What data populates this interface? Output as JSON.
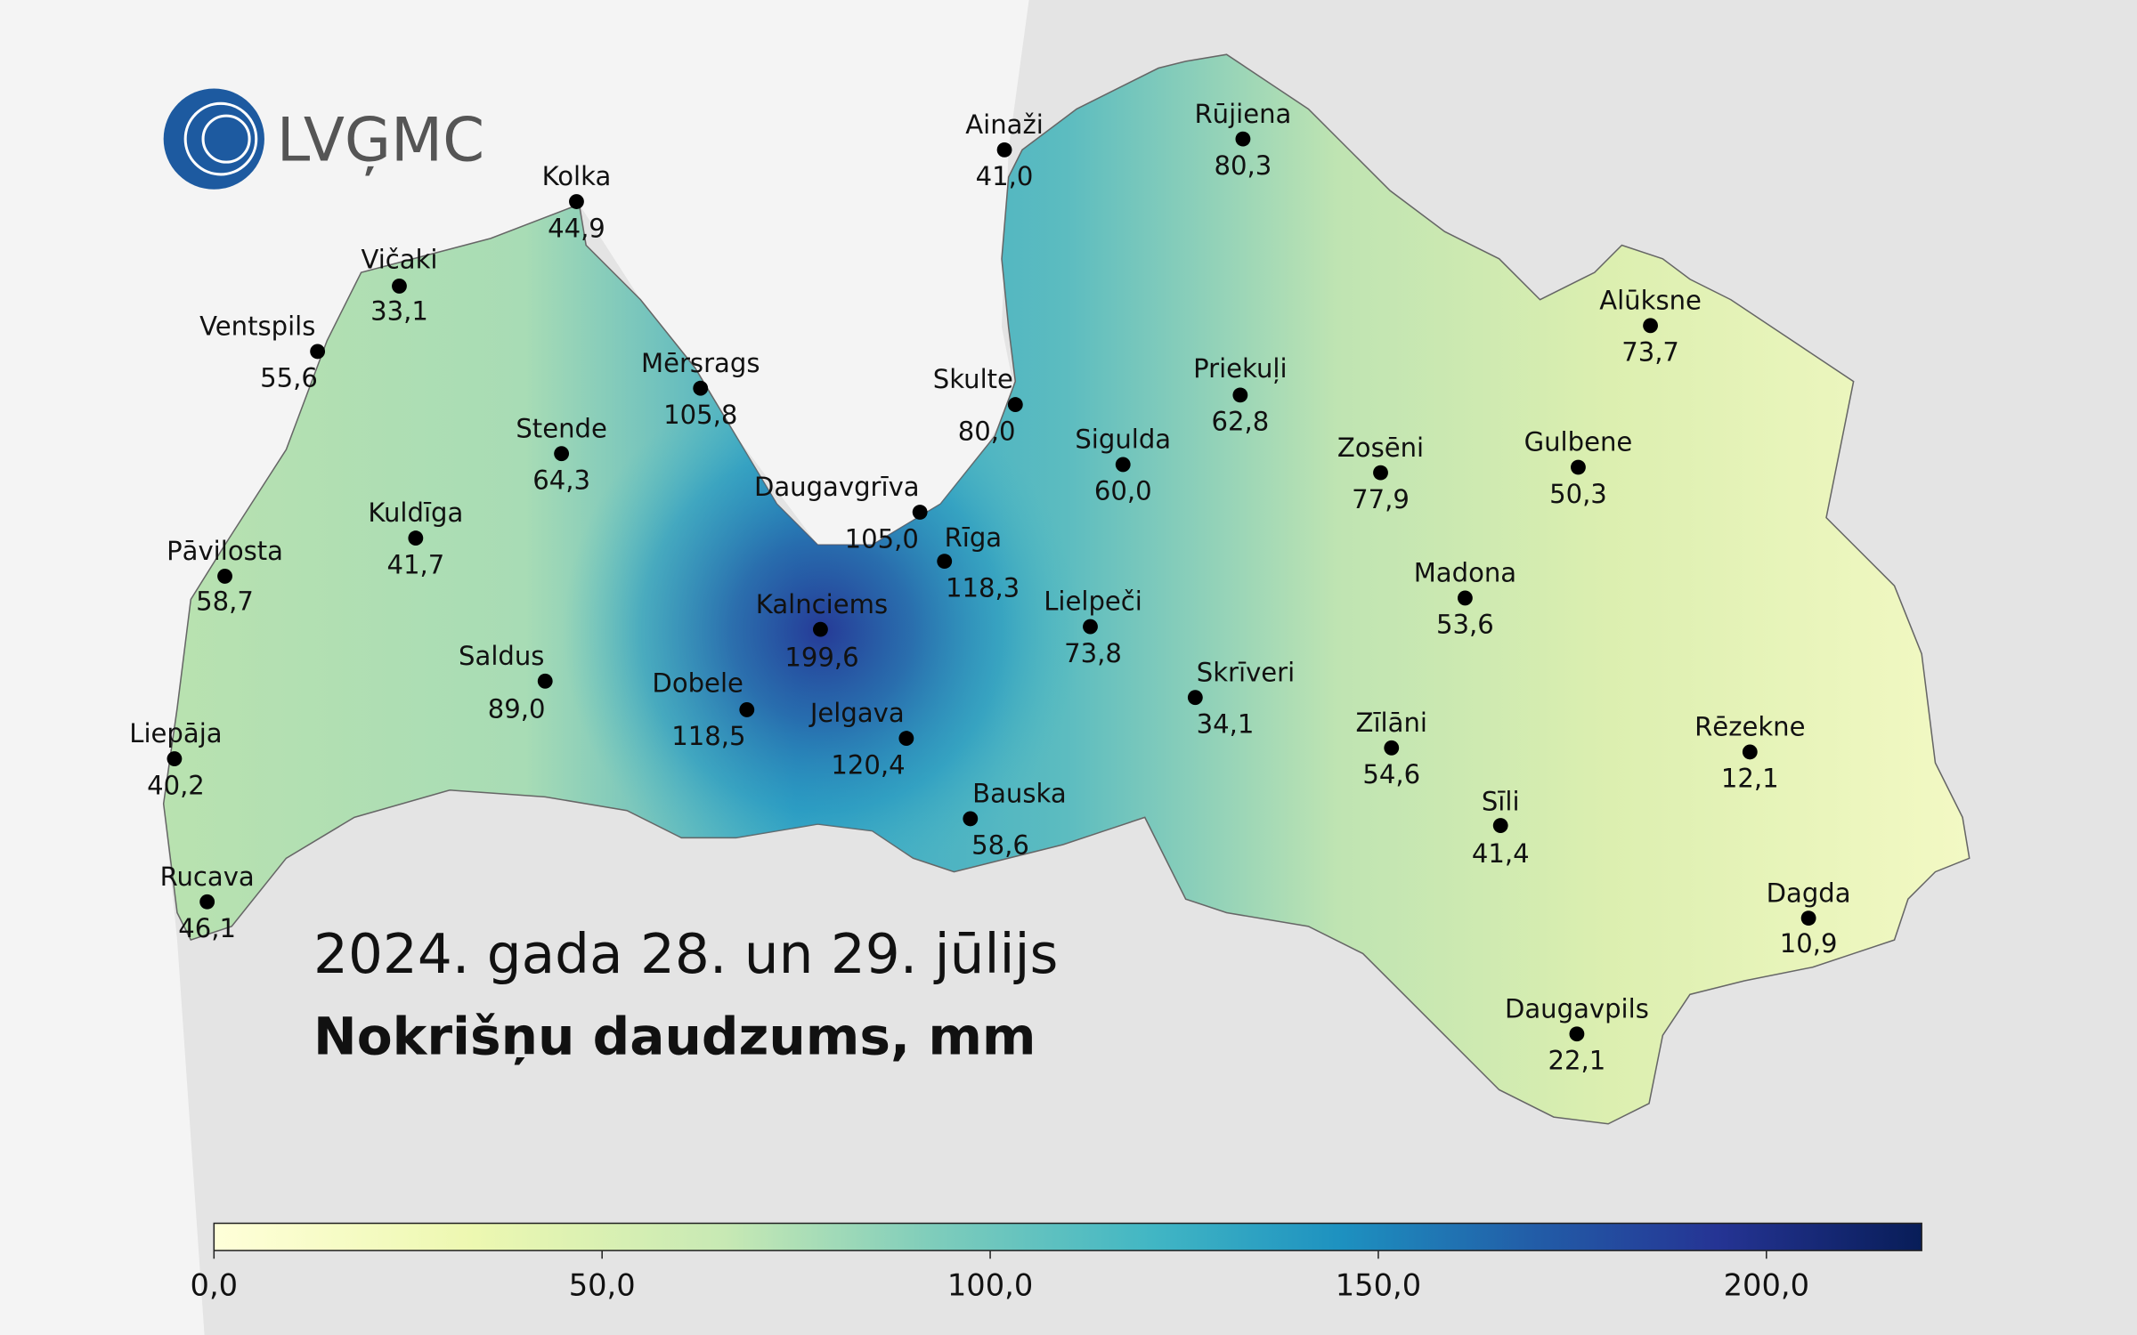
{
  "logo": "LVĢMC",
  "title": "2024. gada 28. un 29. jūlijs",
  "subtitle": "Nokrišņu daudzums, mm",
  "stations": [
    {
      "name": "Ainaži",
      "value": "41,0"
    },
    {
      "name": "Rūjiena",
      "value": "80,3"
    },
    {
      "name": "Kolka",
      "value": "44,9"
    },
    {
      "name": "Vičaki",
      "value": "33,1"
    },
    {
      "name": "Ventspils",
      "value": "55,6"
    },
    {
      "name": "Mērsrags",
      "value": "105,8"
    },
    {
      "name": "Skulte",
      "value": "80,0"
    },
    {
      "name": "Priekuļi",
      "value": "62,8"
    },
    {
      "name": "Alūksne",
      "value": "73,7"
    },
    {
      "name": "Stende",
      "value": "64,3"
    },
    {
      "name": "Sigulda",
      "value": "60,0"
    },
    {
      "name": "Zosēni",
      "value": "77,9"
    },
    {
      "name": "Gulbene",
      "value": "50,3"
    },
    {
      "name": "Daugavgrīva",
      "value": "105,0"
    },
    {
      "name": "Kuldīga",
      "value": "41,7"
    },
    {
      "name": "Pāvilosta",
      "value": "58,7"
    },
    {
      "name": "Rīga",
      "value": "118,3"
    },
    {
      "name": "Madona",
      "value": "53,6"
    },
    {
      "name": "Kalnciems",
      "value": "199,6"
    },
    {
      "name": "Lielpeči",
      "value": "73,8"
    },
    {
      "name": "Saldus",
      "value": "89,0"
    },
    {
      "name": "Dobele",
      "value": "118,5"
    },
    {
      "name": "Skrīveri",
      "value": "34,1"
    },
    {
      "name": "Jelgava",
      "value": "120,4"
    },
    {
      "name": "Liepāja",
      "value": "40,2"
    },
    {
      "name": "Zīlāni",
      "value": "54,6"
    },
    {
      "name": "Rēzekne",
      "value": "12,1"
    },
    {
      "name": "Bauska",
      "value": "58,6"
    },
    {
      "name": "Sīli",
      "value": "41,4"
    },
    {
      "name": "Rucava",
      "value": "46,1"
    },
    {
      "name": "Dagda",
      "value": "10,9"
    },
    {
      "name": "Daugavpils",
      "value": "22,1"
    }
  ],
  "colorbar": {
    "range": [
      0,
      220
    ],
    "ticks": [
      {
        "value": 0,
        "label": "0,0"
      },
      {
        "value": 50,
        "label": "50,0"
      },
      {
        "value": 100,
        "label": "100,0"
      },
      {
        "value": 150,
        "label": "150,0"
      },
      {
        "value": 200,
        "label": "200,0"
      }
    ]
  }
}
